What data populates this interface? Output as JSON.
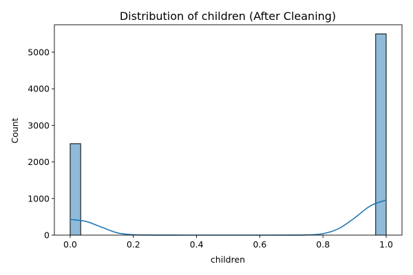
{
  "chart_data": {
    "type": "bar",
    "title": "Distribution of children (After Cleaning)",
    "xlabel": "children",
    "ylabel": "Count",
    "xlim": [
      -0.05,
      1.05
    ],
    "ylim": [
      0,
      5750
    ],
    "x_ticks": [
      {
        "value": 0.0,
        "label": "0.0"
      },
      {
        "value": 0.2,
        "label": "0.2"
      },
      {
        "value": 0.4,
        "label": "0.4"
      },
      {
        "value": 0.6,
        "label": "0.6"
      },
      {
        "value": 0.8,
        "label": "0.8"
      },
      {
        "value": 1.0,
        "label": "1.0"
      }
    ],
    "y_ticks": [
      {
        "value": 0,
        "label": "0"
      },
      {
        "value": 1000,
        "label": "1000"
      },
      {
        "value": 2000,
        "label": "2000"
      },
      {
        "value": 3000,
        "label": "3000"
      },
      {
        "value": 4000,
        "label": "4000"
      },
      {
        "value": 5000,
        "label": "5000"
      }
    ],
    "bins": [
      {
        "start": 0.0,
        "end": 0.0333,
        "count": 2500
      },
      {
        "start": 0.9667,
        "end": 1.0,
        "count": 5500
      }
    ],
    "kde": {
      "x": [
        0.0,
        0.05,
        0.1,
        0.15,
        0.2,
        0.25,
        0.3,
        0.4,
        0.5,
        0.6,
        0.7,
        0.75,
        0.8,
        0.85,
        0.9,
        0.95,
        1.0
      ],
      "y": [
        430,
        375,
        215,
        60,
        10,
        3,
        1,
        0,
        0,
        0,
        1,
        6,
        40,
        180,
        470,
        800,
        960
      ]
    },
    "colors": {
      "bar_fill": "#1f77b4",
      "bar_opacity": "0.5",
      "bar_edge": "#000000",
      "kde_line": "#1f77b4"
    },
    "grid": false,
    "legend": "none"
  }
}
